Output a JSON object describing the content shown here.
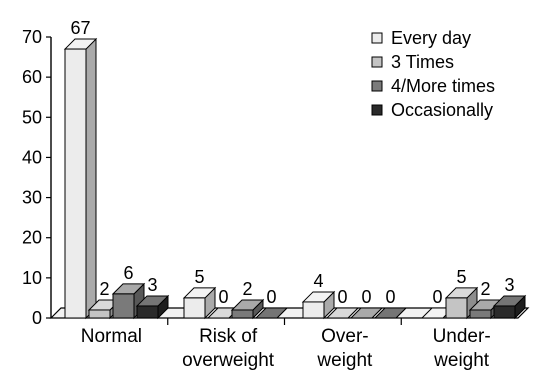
{
  "chart_data": {
    "type": "bar",
    "title": "",
    "xlabel": "",
    "ylabel": "",
    "ylim": [
      0,
      70
    ],
    "y_ticks": [
      "0",
      "10",
      "20",
      "30",
      "40",
      "50",
      "60",
      "70"
    ],
    "categories": [
      "Normal",
      "Risk of overweight",
      "Over-weight",
      "Under-weight"
    ],
    "category_labels": [
      [
        "Normal"
      ],
      [
        "Risk of",
        "overweight"
      ],
      [
        "Over-",
        "weight"
      ],
      [
        "Under-",
        "weight"
      ]
    ],
    "series": [
      {
        "name": "Every day",
        "values": [
          67,
          5,
          4,
          0
        ],
        "color": "#ececec"
      },
      {
        "name": "3 Times",
        "values": [
          2,
          0,
          0,
          5
        ],
        "color": "#c4c4c4"
      },
      {
        "name": "4/More times",
        "values": [
          6,
          2,
          0,
          2
        ],
        "color": "#7a7a7a"
      },
      {
        "name": "Occasionally",
        "values": [
          3,
          0,
          0,
          3
        ],
        "color": "#2a2a2a"
      }
    ],
    "legend_position": "top-right",
    "style": "3d-bar",
    "grid": false
  }
}
